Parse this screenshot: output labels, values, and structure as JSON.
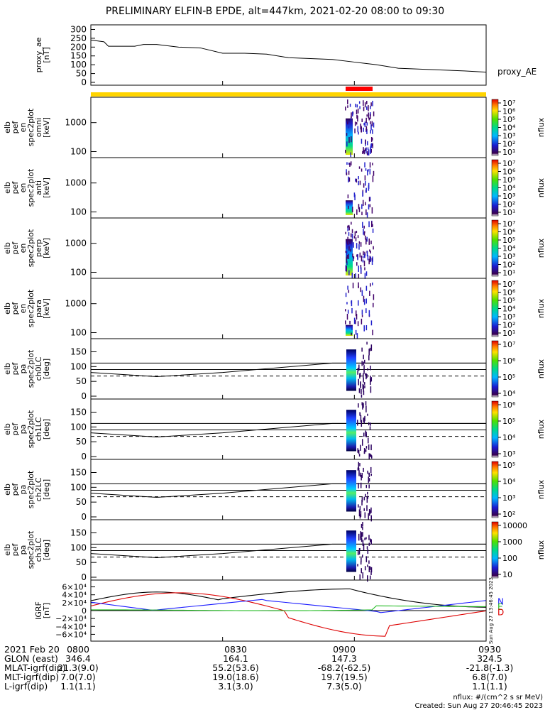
{
  "title": "PRELIMINARY ELFIN-B EPDE, alt=447km, 2021-02-20 08:00 to 09:30",
  "time_ticks": [
    "0800",
    "0830",
    "0900",
    "0930"
  ],
  "footer": {
    "rows": [
      {
        "label": "2021 Feb 20",
        "vals": [
          "0800",
          "0830",
          "0900",
          "0930"
        ]
      },
      {
        "label": "GLON (east)",
        "vals": [
          "346.4",
          "164.1",
          "147.3",
          "324.5"
        ]
      },
      {
        "label": "MLAT-igrf(dip)",
        "vals": [
          "21.3(9.0)",
          "55.2(53.6)",
          "-68.2(-62.5)",
          "-21.8(-1.3)"
        ]
      },
      {
        "label": "MLT-igrf(dip)",
        "vals": [
          "7.0(7.0)",
          "19.0(18.6)",
          "19.7(19.5)",
          "6.8(7.0)"
        ]
      },
      {
        "label": "L-igrf(dip)",
        "vals": [
          "1.1(1.1)",
          "3.1(3.0)",
          "7.3(5.0)",
          "1.1(1.1)"
        ]
      }
    ],
    "units": "nflux: #/(cm^2 s sr MeV)",
    "created": "Created: Sun Aug 27 20:46:45 2023",
    "side_stamp": "Sun Aug 27 13:46:45 2023"
  },
  "chart_data": [
    {
      "type": "line",
      "ylabel_lines": [
        "proxy_ae",
        "[nT]"
      ],
      "yticks": [
        "300",
        "250",
        "200",
        "150",
        "100",
        "50",
        "0"
      ],
      "ylim": [
        0,
        310
      ],
      "legend": "proxy_AE",
      "x": [
        0,
        3,
        4,
        10,
        12,
        15,
        20,
        25,
        30,
        35,
        40,
        45,
        55,
        60,
        65,
        70,
        75,
        80,
        85,
        90
      ],
      "values": [
        240,
        230,
        205,
        205,
        215,
        215,
        200,
        195,
        165,
        165,
        160,
        140,
        130,
        115,
        100,
        80,
        75,
        70,
        65,
        58
      ]
    },
    {
      "type": "heatmap",
      "ylabel_lines": [
        "elb",
        "pef",
        "en",
        "spec2plot",
        "omni",
        "[keV]"
      ],
      "yticks": [
        "1000",
        "100"
      ],
      "zticks": [
        "10⁷",
        "10⁶",
        "10⁵",
        "10⁴",
        "10³",
        "10²",
        "10¹"
      ],
      "zlabel": "nflux"
    },
    {
      "type": "heatmap",
      "ylabel_lines": [
        "elb",
        "pef",
        "en",
        "spec2plot",
        "anti",
        "[keV]"
      ],
      "yticks": [
        "1000",
        "100"
      ],
      "zticks": [
        "10⁷",
        "10⁶",
        "10⁵",
        "10⁴",
        "10³",
        "10²",
        "10¹"
      ],
      "zlabel": "nflux"
    },
    {
      "type": "heatmap",
      "ylabel_lines": [
        "elb",
        "pef",
        "en",
        "spec2plot",
        "perp",
        "[keV]"
      ],
      "yticks": [
        "1000",
        "100"
      ],
      "zticks": [
        "10⁷",
        "10⁶",
        "10⁵",
        "10⁴",
        "10³",
        "10²",
        "10¹"
      ],
      "zlabel": "nflux"
    },
    {
      "type": "heatmap",
      "ylabel_lines": [
        "elb",
        "pef",
        "en",
        "spec2plot",
        "para",
        "[keV]"
      ],
      "yticks": [
        "1000",
        "100"
      ],
      "zticks": [
        "10⁷",
        "10⁶",
        "10⁵",
        "10⁴",
        "10³",
        "10²",
        "10¹"
      ],
      "zlabel": "nflux"
    },
    {
      "type": "heatmap",
      "ylabel_lines": [
        "elb",
        "pef",
        "pa",
        "spec2plot",
        "ch0LC",
        "[deg]"
      ],
      "yticks": [
        "150",
        "100",
        "50",
        "0"
      ],
      "ylim": [
        0,
        180
      ],
      "zticks": [
        "10⁷",
        "10⁶",
        "10⁵",
        "10⁴"
      ],
      "zlabel": "nflux"
    },
    {
      "type": "heatmap",
      "ylabel_lines": [
        "elb",
        "pef",
        "pa",
        "spec2plot",
        "ch1LC",
        "[deg]"
      ],
      "yticks": [
        "150",
        "100",
        "50",
        "0"
      ],
      "ylim": [
        0,
        180
      ],
      "zticks": [
        "10⁶",
        "10⁵",
        "10⁴",
        "10³"
      ],
      "zlabel": "nflux"
    },
    {
      "type": "heatmap",
      "ylabel_lines": [
        "elb",
        "pef",
        "pa",
        "spec2plot",
        "ch2LC",
        "[deg]"
      ],
      "yticks": [
        "150",
        "100",
        "50",
        "0"
      ],
      "ylim": [
        0,
        180
      ],
      "zticks": [
        "10⁵",
        "10⁴",
        "10³",
        "10²"
      ],
      "zlabel": "nflux"
    },
    {
      "type": "heatmap",
      "ylabel_lines": [
        "elb",
        "pef",
        "pa",
        "spec2plot",
        "ch3LC",
        "[deg]"
      ],
      "yticks": [
        "150",
        "100",
        "50",
        "0"
      ],
      "ylim": [
        0,
        180
      ],
      "zticks": [
        "10000",
        "1000",
        "100",
        "10"
      ],
      "zlabel": "nflux"
    },
    {
      "type": "line",
      "ylabel_lines": [
        "IGRF",
        "[nT]"
      ],
      "yticks": [
        "6×10⁴",
        "4×10⁴",
        "2×10⁴",
        "0",
        "−2×10⁴",
        "−4×10⁴",
        "−6×10⁴"
      ],
      "ylim": [
        -70000,
        70000
      ],
      "legend": [
        "N",
        "E",
        "D"
      ],
      "colors": {
        "N": "#1a1aff",
        "E": "#22bb22",
        "D": "#dd0000",
        "total": "#000000"
      }
    }
  ]
}
